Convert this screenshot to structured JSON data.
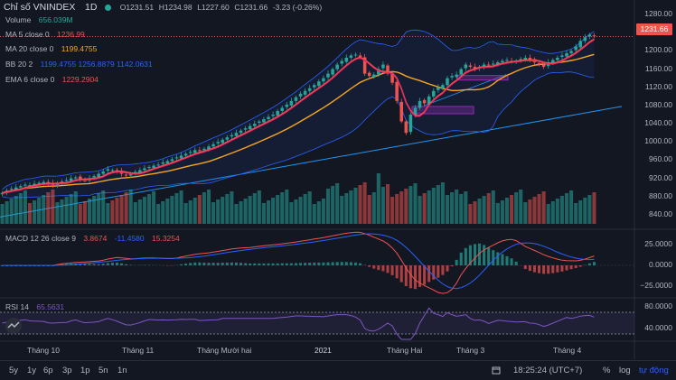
{
  "header": {
    "symbol": "Chỉ số VNINDEX",
    "timeframe": "1D",
    "open": "O1231.51",
    "high": "H1234.98",
    "low": "L1227.60",
    "close": "C1231.66",
    "change": "-3.23 (-0.26%)"
  },
  "legend": {
    "volume_label": "Volume",
    "volume_value": "656.039M",
    "ma5_label": "MA 5 close 0",
    "ma5_value": "1236.99",
    "ma20_label": "MA 20 close 0",
    "ma20_value": "1199.4755",
    "bb_label": "BB 20 2",
    "bb_values": "1199.4755  1256.8879  1142.0631",
    "ema_label": "EMA 6 close 0",
    "ema_value": "1229.2904",
    "macd_label": "MACD 12 26 close 9",
    "macd_values": [
      "3.8674",
      "-11.4580",
      "15.3254"
    ],
    "rsi_label": "RSI 14",
    "rsi_value": "65.5631"
  },
  "price_axis": [
    "1280.00",
    "1231.66",
    "1200.00",
    "1160.00",
    "1120.00",
    "1080.00",
    "1040.00",
    "1000.00",
    "960.00",
    "920.00",
    "880.00",
    "840.00"
  ],
  "macd_axis": [
    "25.0000",
    "0.0000",
    "−25.0000"
  ],
  "rsi_axis": [
    "80.0000",
    "40.0000"
  ],
  "time_axis": [
    "Tháng 10",
    "Tháng 11",
    "Tháng Mười hai",
    "2021",
    "Tháng Hai",
    "Tháng 3",
    "Tháng 4"
  ],
  "ranges": [
    "5y",
    "1y",
    "6p",
    "3p",
    "1p",
    "5n",
    "1n"
  ],
  "footer": {
    "clock": "18:25:24 (UTC+7)",
    "pct": "%",
    "log": "log",
    "auto": "tự động"
  },
  "colors": {
    "background": "#131722",
    "up": "#26a69a",
    "down": "#ef5350",
    "ma5": "#ef5350",
    "ma20": "#f7a521",
    "bb": "#2962ff",
    "ema": "#e91e63",
    "trendline": "#2196f3",
    "rect": "#9c27b0",
    "rsi": "#7e57c2"
  },
  "chart_data": {
    "type": "candlestick",
    "title": "",
    "price_range": [
      820,
      1300
    ],
    "last_price": 1231.66,
    "close_series": [
      888,
      893,
      897,
      900,
      903,
      906,
      905,
      908,
      910,
      912,
      908,
      905,
      910,
      913,
      916,
      920,
      922,
      918,
      915,
      920,
      925,
      930,
      935,
      940,
      938,
      935,
      930,
      926,
      930,
      934,
      938,
      942,
      945,
      948,
      950,
      955,
      958,
      962,
      966,
      970,
      974,
      978,
      982,
      980,
      985,
      990,
      995,
      1000,
      1005,
      1010,
      1015,
      1020,
      1025,
      1030,
      1035,
      1040,
      1045,
      1050,
      1055,
      1060,
      1068,
      1075,
      1082,
      1090,
      1098,
      1106,
      1112,
      1118,
      1125,
      1133,
      1140,
      1150,
      1160,
      1170,
      1178,
      1185,
      1190,
      1192,
      1186,
      1150,
      1145,
      1148,
      1160,
      1170,
      1150,
      1130,
      1090,
      1045,
      1020,
      1060,
      1075,
      1090,
      1085,
      1100,
      1112,
      1120,
      1125,
      1140,
      1145,
      1148,
      1160,
      1170,
      1165,
      1160,
      1165,
      1170,
      1168,
      1172,
      1175,
      1178,
      1180,
      1176,
      1178,
      1182,
      1185,
      1180,
      1175,
      1170,
      1165,
      1175,
      1180,
      1185,
      1190,
      1195,
      1200,
      1210,
      1222,
      1230,
      1236,
      1232
    ],
    "macd_values": [
      3.8674,
      -11.458,
      15.3254
    ],
    "rsi_value": 65.5631,
    "rsi_range": [
      20,
      90
    ],
    "macd_range": [
      -35,
      35
    ]
  }
}
